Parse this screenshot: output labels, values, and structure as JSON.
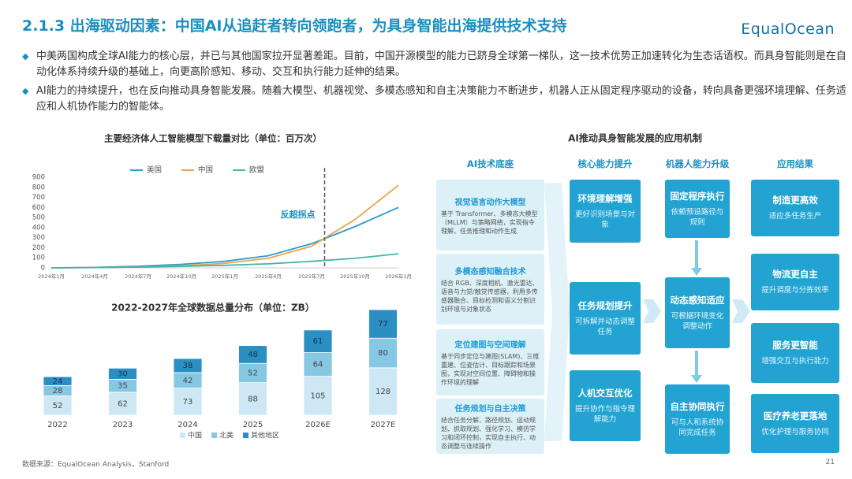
{
  "header": {
    "title": "2.1.3 出海驱动因素：中国AI从追赶者转向领跑者，为具身智能出海提供技术支持",
    "logo": "EqualOcean"
  },
  "bullets": [
    "中美两国构成全球AI能力的核心层，并已与其他国家拉开显著差距。目前，中国开源模型的能力已跻身全球第一梯队，这一技术优势正加速转化为生态话语权。而具身智能则是在自动化体系持续升级的基础上，向更高阶感知、移动、交互和执行能力延伸的结果。",
    "AI能力的持续提升，也在反向推动具身智能发展。随着大模型、机器视觉、多模态感知和自主决策能力不断进步，机器人正从固定程序驱动的设备，转向具备更强环境理解、任务适应和人机协作能力的智能体。"
  ],
  "chart_data": [
    {
      "type": "line",
      "title": "主要经济体人工智能模型下载量对比（单位：百万次）",
      "categories": [
        "2024年1月",
        "2024年4月",
        "2024年7月",
        "2024年10月",
        "2025年1月",
        "2025年4月",
        "2025年7月",
        "2025年10月",
        "2026年1月"
      ],
      "series": [
        {
          "name": "美国",
          "color": "#2b9ccc",
          "values": [
            0,
            5,
            15,
            35,
            65,
            120,
            240,
            410,
            600
          ]
        },
        {
          "name": "中国",
          "color": "#e9a449",
          "values": [
            0,
            3,
            8,
            20,
            45,
            95,
            215,
            480,
            820
          ]
        },
        {
          "name": "欧盟",
          "color": "#3fb8a6",
          "values": [
            0,
            3,
            8,
            15,
            25,
            40,
            65,
            95,
            140
          ]
        }
      ],
      "ylim": [
        0,
        900
      ],
      "yticks": [
        0,
        100,
        200,
        300,
        400,
        500,
        600,
        700,
        800,
        900
      ],
      "grid": false,
      "legend": "top",
      "annotation": "反超拐点"
    },
    {
      "type": "bar",
      "stacked": true,
      "title": "2022-2027年全球数据总量分布（单位：ZB）",
      "categories": [
        "2022",
        "2023",
        "2024",
        "2025",
        "2026E",
        "2027E"
      ],
      "series": [
        {
          "name": "中国",
          "color": "#cde8f4",
          "values": [
            52,
            62,
            73,
            88,
            105,
            128
          ]
        },
        {
          "name": "北美",
          "color": "#86c8e4",
          "values": [
            28,
            35,
            42,
            52,
            64,
            80
          ]
        },
        {
          "name": "其他地区",
          "color": "#2b8fc4",
          "values": [
            24,
            30,
            38,
            48,
            61,
            77
          ]
        }
      ],
      "legend": "bottom"
    }
  ],
  "diagram": {
    "title": "AI推动具身智能发展的应用机制",
    "columns": [
      {
        "header": "AI技术底座",
        "boxes": [
          {
            "title": "视觉语言动作大模型",
            "text": "基于 Transformer、多模态大模型（MLLM）与策略网络，实现指令理解、任务推理和动作生成"
          },
          {
            "title": "多模态感知融合技术",
            "text": "结合 RGB、深度相机、激光雷达、语音与力觉/触觉传感器，利用多传感器融合、目标检测和语义分割识别环境与对象状态"
          },
          {
            "title": "定位建图与空间理解",
            "text": "基于同步定位与建图(SLAM)、三维重建、位姿估计、目标跟踪和场景图，实现对空间位置、障碍物和操作环境的理解"
          },
          {
            "title": "任务规划与自主决策",
            "text": "结合任务分解、路径规划、运动规划、抓取规划、强化学习、模仿学习和闭环控制，实现自主执行、动态调整与连续操作"
          }
        ]
      },
      {
        "header": "核心能力提升",
        "boxes": [
          {
            "title": "环境理解增强",
            "text": "更好识别场景与对象"
          },
          {
            "title": "任务规划提升",
            "text": "可拆解并动态调整任务"
          },
          {
            "title": "人机交互优化",
            "text": "提升协作与指令理解能力"
          }
        ]
      },
      {
        "header": "机器人能力升级",
        "boxes": [
          {
            "title": "固定程序执行",
            "text": "依赖预设路径与规则"
          },
          {
            "title": "动态感知适应",
            "text": "可根据环境变化调整动作"
          },
          {
            "title": "自主协同执行",
            "text": "可与人和系统协同完成任务"
          }
        ]
      },
      {
        "header": "应用结果",
        "boxes": [
          {
            "title": "制造更高效",
            "text": "适应多任务生产"
          },
          {
            "title": "物流更自主",
            "text": "提升调度与分拣效率"
          },
          {
            "title": "服务更智能",
            "text": "增强交互与执行能力"
          },
          {
            "title": "医疗养老更落地",
            "text": "优化护理与服务协同"
          }
        ]
      }
    ]
  },
  "footer": {
    "source": "数据来源：EqualOcean Analysis，Stanford",
    "page": 21
  }
}
